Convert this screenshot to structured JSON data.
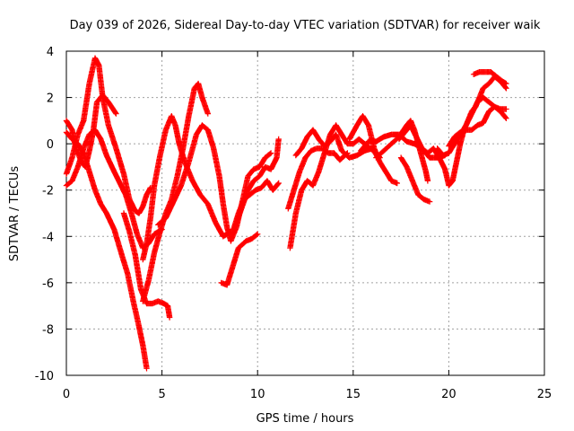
{
  "chart_data": {
    "type": "scatter",
    "title": "Day 039 of 2026, Sidereal Day-to-day VTEC variation (SDTVAR) for receiver waik",
    "xlabel": "GPS time / hours",
    "ylabel": "SDTVAR / TECUs",
    "xlim": [
      0,
      25
    ],
    "ylim": [
      -10,
      4
    ],
    "xticks": [
      0,
      5,
      10,
      15,
      20,
      25
    ],
    "yticks": [
      -10,
      -8,
      -6,
      -4,
      -2,
      0,
      2,
      4
    ],
    "xtick_labels": [
      "0",
      "5",
      "10",
      "15",
      "20",
      "25"
    ],
    "ytick_labels": [
      "-10",
      "-8",
      "-6",
      "-4",
      "-2",
      "0",
      "2",
      "4"
    ],
    "grid": true,
    "marker": "+",
    "color": "#ff0000",
    "series": [
      {
        "name": "track-1",
        "points": [
          [
            0,
            -1.3
          ],
          [
            0.3,
            -0.6
          ],
          [
            0.6,
            0.4
          ],
          [
            0.9,
            1.0
          ],
          [
            1.2,
            2.6
          ],
          [
            1.5,
            3.7
          ],
          [
            1.7,
            3.4
          ],
          [
            1.9,
            2.0
          ],
          [
            2.2,
            0.8
          ],
          [
            2.6,
            -0.2
          ],
          [
            3.0,
            -1.3
          ],
          [
            3.3,
            -2.4
          ],
          [
            3.6,
            -2.9
          ],
          [
            3.8,
            -3.0
          ],
          [
            4.0,
            -2.7
          ],
          [
            4.2,
            -2.2
          ],
          [
            4.4,
            -1.9
          ]
        ]
      },
      {
        "name": "track-2",
        "points": [
          [
            0,
            1.0
          ],
          [
            0.3,
            0.6
          ],
          [
            0.5,
            -0.2
          ],
          [
            0.8,
            -0.8
          ],
          [
            1.0,
            -1.0
          ],
          [
            1.2,
            -0.3
          ],
          [
            1.4,
            0.5
          ],
          [
            1.6,
            1.8
          ],
          [
            1.9,
            2.1
          ],
          [
            2.2,
            1.8
          ],
          [
            2.6,
            1.3
          ]
        ]
      },
      {
        "name": "track-3",
        "points": [
          [
            0,
            0.5
          ],
          [
            0.3,
            0.2
          ],
          [
            0.6,
            0.0
          ],
          [
            0.9,
            -0.4
          ],
          [
            1.2,
            -1.2
          ],
          [
            1.5,
            -2.0
          ],
          [
            1.8,
            -2.6
          ],
          [
            2.1,
            -3.0
          ],
          [
            2.5,
            -3.7
          ],
          [
            2.9,
            -4.8
          ],
          [
            3.2,
            -5.6
          ],
          [
            3.5,
            -6.8
          ],
          [
            3.8,
            -7.9
          ],
          [
            4.0,
            -8.7
          ],
          [
            4.2,
            -9.7
          ]
        ]
      },
      {
        "name": "track-4",
        "points": [
          [
            0,
            -1.8
          ],
          [
            0.3,
            -1.6
          ],
          [
            0.6,
            -1.0
          ],
          [
            0.9,
            -0.2
          ],
          [
            1.2,
            0.4
          ],
          [
            1.5,
            0.6
          ],
          [
            1.8,
            0.2
          ],
          [
            2.1,
            -0.5
          ],
          [
            2.5,
            -1.2
          ],
          [
            2.8,
            -1.7
          ],
          [
            3.1,
            -2.2
          ],
          [
            3.4,
            -3.0
          ],
          [
            3.7,
            -3.9
          ],
          [
            4.0,
            -4.5
          ],
          [
            4.3,
            -4.3
          ],
          [
            4.6,
            -3.9
          ],
          [
            5.0,
            -3.7
          ]
        ]
      },
      {
        "name": "track-5",
        "points": [
          [
            3.0,
            -3.0
          ],
          [
            3.3,
            -3.8
          ],
          [
            3.6,
            -4.8
          ],
          [
            3.9,
            -6.3
          ],
          [
            4.2,
            -6.9
          ],
          [
            4.5,
            -6.9
          ],
          [
            4.8,
            -6.8
          ],
          [
            5.1,
            -6.9
          ],
          [
            5.3,
            -7.0
          ],
          [
            5.4,
            -7.5
          ]
        ]
      },
      {
        "name": "track-6",
        "points": [
          [
            4.0,
            -5.0
          ],
          [
            4.2,
            -4.3
          ],
          [
            4.4,
            -3.2
          ],
          [
            4.6,
            -1.8
          ],
          [
            4.9,
            -0.5
          ],
          [
            5.2,
            0.6
          ],
          [
            5.5,
            1.2
          ],
          [
            5.7,
            0.8
          ],
          [
            5.9,
            0.0
          ],
          [
            6.2,
            -0.8
          ],
          [
            6.6,
            -1.6
          ],
          [
            7.0,
            -2.2
          ],
          [
            7.4,
            -2.6
          ],
          [
            7.8,
            -3.4
          ],
          [
            8.2,
            -4.0
          ],
          [
            8.6,
            -3.8
          ]
        ]
      },
      {
        "name": "track-7",
        "points": [
          [
            4.0,
            -6.8
          ],
          [
            4.3,
            -5.9
          ],
          [
            4.6,
            -4.7
          ],
          [
            4.9,
            -3.8
          ],
          [
            5.2,
            -3.0
          ],
          [
            5.5,
            -2.4
          ],
          [
            5.8,
            -1.4
          ],
          [
            6.1,
            -0.2
          ],
          [
            6.4,
            1.2
          ],
          [
            6.7,
            2.4
          ],
          [
            6.9,
            2.6
          ],
          [
            7.1,
            2.0
          ],
          [
            7.4,
            1.3
          ]
        ]
      },
      {
        "name": "track-8",
        "points": [
          [
            4.8,
            -3.5
          ],
          [
            5.2,
            -3.2
          ],
          [
            5.6,
            -2.5
          ],
          [
            6.0,
            -1.8
          ],
          [
            6.4,
            -0.8
          ],
          [
            6.8,
            0.4
          ],
          [
            7.1,
            0.8
          ],
          [
            7.4,
            0.6
          ],
          [
            7.7,
            -0.2
          ],
          [
            8.0,
            -1.4
          ],
          [
            8.2,
            -2.6
          ],
          [
            8.4,
            -3.6
          ],
          [
            8.6,
            -4.2
          ],
          [
            8.9,
            -3.6
          ],
          [
            9.2,
            -2.5
          ],
          [
            9.5,
            -1.4
          ],
          [
            9.8,
            -1.1
          ],
          [
            10.1,
            -1.0
          ],
          [
            10.4,
            -0.6
          ],
          [
            10.7,
            -0.4
          ]
        ]
      },
      {
        "name": "track-9",
        "points": [
          [
            8.1,
            -6.0
          ],
          [
            8.4,
            -6.1
          ],
          [
            8.7,
            -5.3
          ],
          [
            9.0,
            -4.5
          ],
          [
            9.4,
            -4.2
          ],
          [
            9.7,
            -4.1
          ],
          [
            10.0,
            -3.9
          ]
        ]
      },
      {
        "name": "track-10",
        "points": [
          [
            8.6,
            -4.1
          ],
          [
            8.9,
            -3.4
          ],
          [
            9.2,
            -2.7
          ],
          [
            9.5,
            -2.0
          ],
          [
            9.8,
            -1.6
          ],
          [
            10.1,
            -1.4
          ],
          [
            10.4,
            -1.0
          ],
          [
            10.7,
            -1.1
          ],
          [
            11.0,
            -0.6
          ],
          [
            11.1,
            0.2
          ]
        ]
      },
      {
        "name": "track-11",
        "points": [
          [
            8.7,
            -3.8
          ],
          [
            9.0,
            -3.0
          ],
          [
            9.3,
            -2.4
          ],
          [
            9.6,
            -2.2
          ],
          [
            9.9,
            -2.0
          ],
          [
            10.2,
            -1.9
          ],
          [
            10.5,
            -1.6
          ],
          [
            10.8,
            -2.0
          ],
          [
            11.1,
            -1.7
          ]
        ]
      },
      {
        "name": "track-12",
        "points": [
          [
            11.6,
            -2.8
          ],
          [
            11.9,
            -2.0
          ],
          [
            12.2,
            -1.2
          ],
          [
            12.5,
            -0.6
          ],
          [
            12.8,
            -0.3
          ],
          [
            13.1,
            -0.2
          ],
          [
            13.4,
            -0.2
          ],
          [
            13.7,
            -0.4
          ],
          [
            14.0,
            -0.4
          ],
          [
            14.3,
            -0.7
          ],
          [
            14.7,
            -0.4
          ]
        ]
      },
      {
        "name": "track-13",
        "points": [
          [
            11.7,
            -4.5
          ],
          [
            12.0,
            -3.0
          ],
          [
            12.3,
            -2.0
          ],
          [
            12.6,
            -1.6
          ],
          [
            12.9,
            -1.8
          ],
          [
            13.2,
            -1.2
          ],
          [
            13.5,
            -0.4
          ],
          [
            13.8,
            0.4
          ],
          [
            14.1,
            0.8
          ],
          [
            14.4,
            0.4
          ],
          [
            14.7,
            0.0
          ],
          [
            15.0,
            0.0
          ],
          [
            15.3,
            0.2
          ],
          [
            15.6,
            0.0
          ],
          [
            15.9,
            -0.2
          ],
          [
            16.2,
            -0.4
          ],
          [
            16.4,
            -0.6
          ]
        ]
      },
      {
        "name": "track-14",
        "points": [
          [
            12.0,
            -0.5
          ],
          [
            12.3,
            -0.2
          ],
          [
            12.6,
            0.3
          ],
          [
            12.9,
            0.6
          ],
          [
            13.2,
            0.2
          ],
          [
            13.5,
            -0.1
          ],
          [
            13.8,
            0.1
          ],
          [
            14.1,
            0.4
          ],
          [
            14.4,
            -0.3
          ],
          [
            14.8,
            -0.6
          ],
          [
            15.2,
            -0.5
          ],
          [
            15.6,
            -0.3
          ],
          [
            16.0,
            -0.2
          ],
          [
            16.3,
            -0.6
          ]
        ]
      },
      {
        "name": "track-15",
        "points": [
          [
            14.8,
            0.2
          ],
          [
            15.2,
            0.8
          ],
          [
            15.5,
            1.2
          ],
          [
            15.8,
            0.8
          ],
          [
            16.1,
            -0.2
          ],
          [
            16.4,
            -0.8
          ],
          [
            16.7,
            -1.2
          ],
          [
            17.0,
            -1.6
          ],
          [
            17.3,
            -1.7
          ]
        ]
      },
      {
        "name": "track-16",
        "points": [
          [
            15.4,
            -0.3
          ],
          [
            15.8,
            0.1
          ],
          [
            16.2,
            0.1
          ],
          [
            16.6,
            0.3
          ],
          [
            17.0,
            0.4
          ],
          [
            17.4,
            0.4
          ],
          [
            17.8,
            0.1
          ],
          [
            18.2,
            0.0
          ],
          [
            18.6,
            -0.2
          ],
          [
            19.0,
            -0.6
          ],
          [
            19.4,
            -0.6
          ],
          [
            19.8,
            -0.5
          ]
        ]
      },
      {
        "name": "track-17",
        "points": [
          [
            16.2,
            -0.6
          ],
          [
            16.6,
            -0.3
          ],
          [
            17.0,
            0.0
          ],
          [
            17.4,
            0.3
          ],
          [
            17.8,
            0.8
          ],
          [
            18.0,
            1.0
          ],
          [
            18.2,
            0.6
          ],
          [
            18.4,
            0.0
          ],
          [
            18.6,
            -0.6
          ],
          [
            18.8,
            -1.2
          ],
          [
            18.9,
            -1.6
          ]
        ]
      },
      {
        "name": "track-18",
        "points": [
          [
            17.5,
            -0.6
          ],
          [
            17.8,
            -1.0
          ],
          [
            18.1,
            -1.6
          ],
          [
            18.4,
            -2.2
          ],
          [
            18.7,
            -2.4
          ],
          [
            19.0,
            -2.5
          ]
        ]
      },
      {
        "name": "track-19",
        "points": [
          [
            17.4,
            0.2
          ],
          [
            17.7,
            0.5
          ],
          [
            18.0,
            0.8
          ],
          [
            18.3,
            0.3
          ],
          [
            18.6,
            -0.2
          ],
          [
            18.9,
            -0.4
          ],
          [
            19.2,
            -0.2
          ],
          [
            19.5,
            -0.6
          ],
          [
            19.8,
            -1.1
          ],
          [
            20.0,
            -1.8
          ],
          [
            20.2,
            -1.6
          ],
          [
            20.4,
            -0.8
          ],
          [
            20.6,
            0.0
          ],
          [
            20.8,
            0.6
          ],
          [
            21.0,
            1.0
          ],
          [
            21.2,
            1.4
          ],
          [
            21.4,
            1.6
          ],
          [
            21.6,
            2.0
          ],
          [
            21.8,
            2.4
          ],
          [
            22.1,
            2.6
          ],
          [
            22.4,
            2.9
          ],
          [
            22.7,
            2.7
          ],
          [
            23.0,
            2.4
          ]
        ]
      },
      {
        "name": "track-20",
        "points": [
          [
            19.4,
            -0.2
          ],
          [
            19.7,
            -0.5
          ],
          [
            20.0,
            -0.4
          ],
          [
            20.3,
            0.0
          ],
          [
            20.6,
            0.4
          ],
          [
            20.9,
            0.8
          ],
          [
            21.2,
            1.3
          ],
          [
            21.5,
            1.8
          ],
          [
            21.8,
            2.0
          ],
          [
            22.1,
            1.8
          ],
          [
            22.4,
            1.6
          ],
          [
            22.7,
            1.4
          ],
          [
            23.0,
            1.1
          ]
        ]
      },
      {
        "name": "track-21",
        "points": [
          [
            20.0,
            -0.1
          ],
          [
            20.3,
            0.3
          ],
          [
            20.6,
            0.5
          ],
          [
            20.9,
            0.6
          ],
          [
            21.2,
            0.6
          ],
          [
            21.5,
            0.8
          ],
          [
            21.8,
            0.9
          ],
          [
            22.1,
            1.4
          ],
          [
            22.4,
            1.6
          ],
          [
            22.7,
            1.5
          ],
          [
            23.0,
            1.5
          ]
        ]
      },
      {
        "name": "track-22",
        "points": [
          [
            21.3,
            3.0
          ],
          [
            21.6,
            3.1
          ],
          [
            21.9,
            3.1
          ],
          [
            22.2,
            3.1
          ],
          [
            22.5,
            2.9
          ],
          [
            22.8,
            2.7
          ],
          [
            23.0,
            2.6
          ]
        ]
      }
    ]
  }
}
